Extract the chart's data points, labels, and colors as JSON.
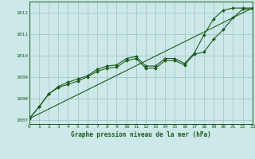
{
  "title": "Graphe pression niveau de la mer (hPa)",
  "bg_color": "#cce8e8",
  "grid_color": "#aacccc",
  "line_color": "#1a5c1a",
  "xlim": [
    0,
    23
  ],
  "ylim": [
    1006.8,
    1012.5
  ],
  "yticks": [
    1007,
    1008,
    1009,
    1010,
    1011,
    1012
  ],
  "xticks": [
    0,
    1,
    2,
    3,
    4,
    5,
    6,
    7,
    8,
    9,
    10,
    11,
    12,
    13,
    14,
    15,
    16,
    17,
    18,
    19,
    20,
    21,
    22,
    23
  ],
  "series1": [
    1007.05,
    1007.6,
    1008.2,
    1008.5,
    1008.65,
    1008.8,
    1009.0,
    1009.25,
    1009.4,
    1009.45,
    1009.75,
    1009.85,
    1009.4,
    1009.4,
    1009.75,
    1009.75,
    1009.55,
    1010.05,
    1010.15,
    1010.75,
    1011.2,
    1011.75,
    1012.15,
    1012.15
  ],
  "series2": [
    1007.05,
    1007.6,
    1008.2,
    1008.55,
    1008.75,
    1008.9,
    1009.05,
    1009.35,
    1009.5,
    1009.55,
    1009.85,
    1009.95,
    1009.5,
    1009.5,
    1009.85,
    1009.85,
    1009.62,
    1010.1,
    1010.95,
    1011.7,
    1012.1,
    1012.2,
    1012.2,
    1012.2
  ],
  "series3_straight": [
    1007.05,
    1012.2
  ]
}
